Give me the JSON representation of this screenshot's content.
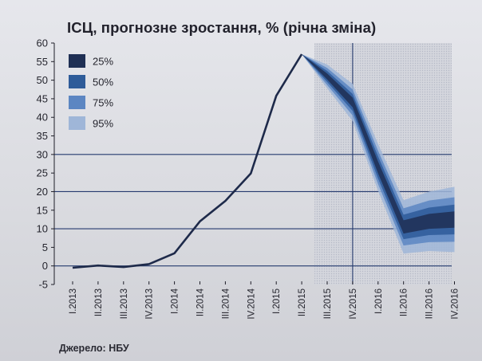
{
  "chart_data": {
    "type": "line",
    "title": "ІСЦ, прогнозне зростання, % (річна зміна)",
    "source_note": "Джерело: НБУ",
    "categories": [
      "I.2013",
      "II.2013",
      "III.2013",
      "IV.2013",
      "I.2014",
      "II.2014",
      "III.2014",
      "IV.2014",
      "I.2015",
      "II.2015",
      "III.2015",
      "IV.2015",
      "I.2016",
      "II.2016",
      "III.2016",
      "IV.2016"
    ],
    "series": [
      {
        "values": [
          -0.5,
          0.1,
          -0.3,
          0.5,
          3.4,
          12.0,
          17.5,
          24.9,
          45.8,
          57.0,
          51.0,
          44.0,
          26.5,
          10.5,
          12.0,
          12.5
        ],
        "color": "#1e2a4a"
      }
    ],
    "fan_chart": {
      "legend": [
        {
          "label": "25%",
          "color": "#1f2f54"
        },
        {
          "label": "50%",
          "color": "#2e5b99"
        },
        {
          "label": "75%",
          "color": "#5c86c2"
        },
        {
          "label": "95%",
          "color": "#9fb6d8"
        }
      ],
      "forecast_start_index": 9,
      "center": [
        57.0,
        51.0,
        44.0,
        26.5,
        10.5,
        12.0,
        12.5
      ],
      "half_widths": {
        "25%": [
          0,
          0.8,
          1.3,
          1.6,
          1.8,
          2.0,
          2.2
        ],
        "50%": [
          0,
          1.5,
          2.3,
          3.0,
          3.3,
          3.7,
          4.0
        ],
        "75%": [
          0,
          2.3,
          3.5,
          4.5,
          5.0,
          5.6,
          6.0
        ],
        "95%": [
          0,
          3.2,
          5.0,
          6.3,
          7.2,
          8.0,
          8.8
        ]
      },
      "shaded_region_start_index": 9.5
    },
    "ylim": [
      -5,
      60
    ],
    "yticks": [
      -5,
      0,
      5,
      10,
      15,
      20,
      25,
      30,
      35,
      40,
      45,
      50,
      55,
      60
    ],
    "highlighted_gridlines": [
      0,
      10,
      20,
      30
    ],
    "vertical_marker_index": 11,
    "legend_position": "top-left",
    "xlabel": "",
    "ylabel": ""
  }
}
